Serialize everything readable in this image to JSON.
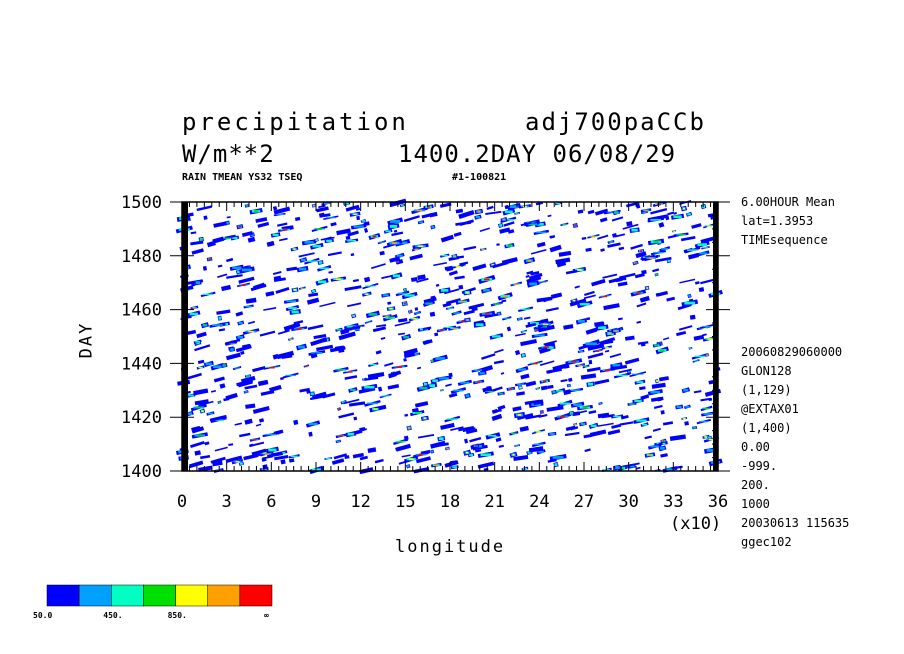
{
  "header": {
    "title_left": "precipitation",
    "title_right": "adj700paCCb",
    "units": "W/m**2",
    "time_info": "1400.2DAY 06/08/29",
    "subtitle_left": "RAIN TMEAN YS32 TSEQ",
    "subtitle_right": "#1-100821"
  },
  "meta_right_top": [
    "6.00HOUR Mean",
    "lat=1.3953",
    "TIMEsequence"
  ],
  "meta_right_bottom": [
    "20060829060000",
    "GLON128",
    "(1,129)",
    "@EXTAX01",
    "(1,400)",
    "0.00",
    "-999.",
    "200.",
    "1000",
    "20030613 115635",
    "ggec102"
  ],
  "chart_data": {
    "type": "heatmap",
    "xlabel": "longitude",
    "ylabel": "DAY",
    "x_scale_note": "(x10)",
    "xlim": [
      0,
      36
    ],
    "ylim": [
      1400,
      1500
    ],
    "x_ticks": [
      0,
      3,
      6,
      9,
      12,
      15,
      18,
      21,
      24,
      27,
      30,
      33,
      36
    ],
    "y_ticks": [
      1400,
      1420,
      1440,
      1460,
      1480,
      1500
    ],
    "colorbar": {
      "colors": [
        "#0000ff",
        "#00a0ff",
        "#00ffc0",
        "#00e000",
        "#ffff00",
        "#ffa000",
        "#ff0000"
      ],
      "labels": [
        "50.0",
        "450.",
        "850.",
        "∞"
      ]
    }
  }
}
